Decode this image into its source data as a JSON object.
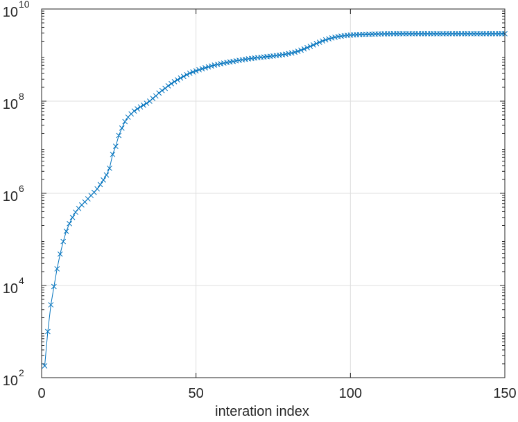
{
  "chart_data": {
    "type": "line",
    "title": "",
    "xlabel": "interation index",
    "ylabel": "",
    "xlim": [
      0,
      150
    ],
    "ylim_exponent": [
      2,
      10
    ],
    "yscale": "log",
    "grid": true,
    "x_ticks": [
      {
        "value": 0,
        "label": "0"
      },
      {
        "value": 50,
        "label": "50"
      },
      {
        "value": 100,
        "label": "100"
      },
      {
        "value": 150,
        "label": "150"
      }
    ],
    "y_ticks": [
      {
        "exp": 2,
        "base": "10",
        "power": "2"
      },
      {
        "exp": 4,
        "base": "10",
        "power": "4"
      },
      {
        "exp": 6,
        "base": "10",
        "power": "6"
      },
      {
        "exp": 8,
        "base": "10",
        "power": "8"
      },
      {
        "exp": 10,
        "base": "10",
        "power": "10"
      }
    ],
    "series": [
      {
        "color": "#0072bd",
        "marker": "x",
        "x": [
          1,
          2,
          3,
          4,
          5,
          6,
          7,
          8,
          9,
          10,
          11,
          12,
          13,
          14,
          15,
          16,
          17,
          18,
          19,
          20,
          21,
          22,
          23,
          24,
          25,
          26,
          27,
          28,
          29,
          30,
          31,
          32,
          33,
          34,
          35,
          36,
          37,
          38,
          39,
          40,
          41,
          42,
          43,
          44,
          45,
          46,
          47,
          48,
          49,
          50,
          51,
          52,
          53,
          54,
          55,
          56,
          57,
          58,
          59,
          60,
          61,
          62,
          63,
          64,
          65,
          66,
          67,
          68,
          69,
          70,
          71,
          72,
          73,
          74,
          75,
          76,
          77,
          78,
          79,
          80,
          81,
          82,
          83,
          84,
          85,
          86,
          87,
          88,
          89,
          90,
          91,
          92,
          93,
          94,
          95,
          96,
          97,
          98,
          99,
          100,
          101,
          102,
          103,
          104,
          105,
          106,
          107,
          108,
          109,
          110,
          111,
          112,
          113,
          114,
          115,
          116,
          117,
          118,
          119,
          120,
          121,
          122,
          123,
          124,
          125,
          126,
          127,
          128,
          129,
          130,
          131,
          132,
          133,
          134,
          135,
          136,
          137,
          138,
          139,
          140,
          141,
          142,
          143,
          144,
          145,
          146,
          147,
          148,
          149,
          150
        ],
        "y": [
          180,
          1000,
          3800,
          9500,
          23000,
          48000,
          90000,
          150000,
          220000,
          300000,
          390000,
          470000,
          560000,
          650000,
          760000,
          900000,
          1050000,
          1250000,
          1550000,
          1950000,
          2500000,
          3500000,
          7000000,
          10500000,
          18000000,
          26000000,
          36000000,
          45000000,
          53000000,
          61000000,
          68000000,
          75000000,
          82000000,
          90000000,
          100000000,
          115000000,
          130000000,
          150000000,
          170000000,
          190000000,
          215000000,
          240000000,
          265000000,
          290000000,
          318000000,
          345000000,
          375000000,
          405000000,
          430000000,
          455000000,
          480000000,
          505000000,
          530000000,
          555000000,
          580000000,
          605000000,
          625000000,
          648000000,
          670000000,
          690000000,
          710000000,
          730000000,
          750000000,
          770000000,
          790000000,
          810000000,
          828000000,
          845000000,
          862000000,
          880000000,
          895000000,
          910000000,
          925000000,
          940000000,
          958000000,
          976000000,
          995000000,
          1020000000,
          1045000000,
          1075000000,
          1110000000,
          1155000000,
          1210000000,
          1280000000,
          1360000000,
          1450000000,
          1550000000,
          1660000000,
          1780000000,
          1900000000,
          2020000000,
          2140000000,
          2250000000,
          2350000000,
          2440000000,
          2520000000,
          2580000000,
          2630000000,
          2680000000,
          2720000000,
          2750000000,
          2780000000,
          2800000000,
          2820000000,
          2830000000,
          2840000000,
          2850000000,
          2860000000,
          2870000000,
          2880000000,
          2885000000,
          2890000000,
          2895000000,
          2900000000,
          2900000000,
          2900000000,
          2900000000,
          2900000000,
          2900000000,
          2900000000,
          2900000000,
          2900000000,
          2900000000,
          2900000000,
          2900000000,
          2900000000,
          2900000000,
          2900000000,
          2900000000,
          2900000000,
          2900000000,
          2900000000,
          2900000000,
          2900000000,
          2900000000,
          2900000000,
          2900000000,
          2900000000,
          2900000000,
          2900000000,
          2900000000,
          2900000000,
          2900000000,
          2900000000,
          2900000000,
          2900000000,
          2900000000,
          2900000000,
          2900000000,
          2900000000
        ]
      }
    ]
  }
}
